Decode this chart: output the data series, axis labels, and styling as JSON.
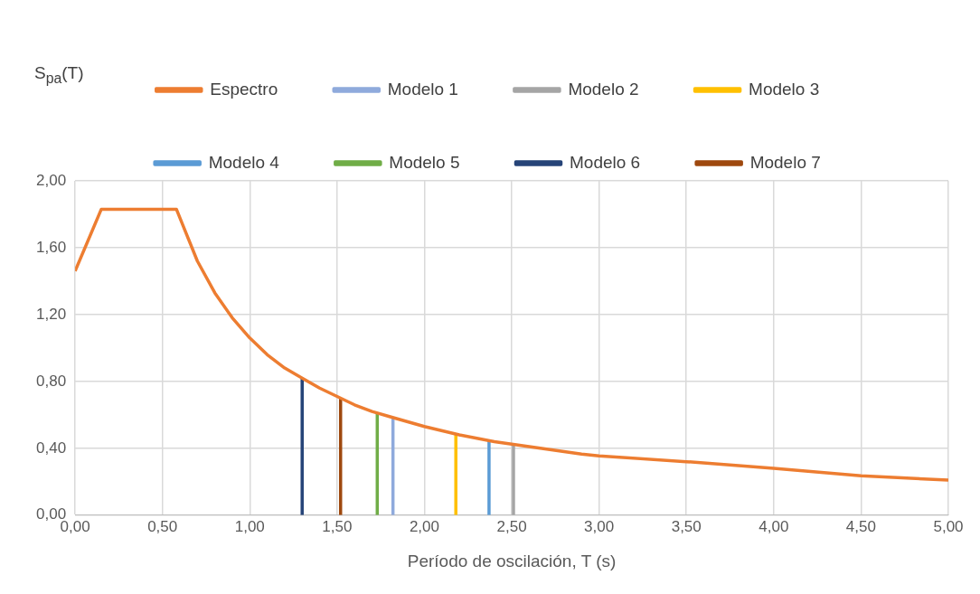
{
  "chart_data": {
    "type": "line",
    "xlabel": "Período de oscilación, T (s)",
    "ylabel": "S$_{pa}$(T)",
    "xlim": [
      0,
      5
    ],
    "ylim": [
      0,
      2
    ],
    "xticks": [
      {
        "value": 0,
        "label": "0,00"
      },
      {
        "value": 0.5,
        "label": "0,50"
      },
      {
        "value": 1,
        "label": "1,00"
      },
      {
        "value": 1.5,
        "label": "1,50"
      },
      {
        "value": 2,
        "label": "2,00"
      },
      {
        "value": 2.5,
        "label": "2,50"
      },
      {
        "value": 3,
        "label": "3,00"
      },
      {
        "value": 3.5,
        "label": "3,50"
      },
      {
        "value": 4,
        "label": "4,00"
      },
      {
        "value": 4.5,
        "label": "4,50"
      },
      {
        "value": 5,
        "label": "5,00"
      }
    ],
    "yticks": [
      {
        "value": 0,
        "label": "0,00"
      },
      {
        "value": 0.4,
        "label": "0,40"
      },
      {
        "value": 0.8,
        "label": "0,80"
      },
      {
        "value": 1.2,
        "label": "1,20"
      },
      {
        "value": 1.6,
        "label": "1,60"
      },
      {
        "value": 2,
        "label": "2,00"
      }
    ],
    "grid": true,
    "legend": "top",
    "marker": "none",
    "series": [
      {
        "name": "Espectro",
        "color": "#ed7d31",
        "x": [
          0,
          0.15,
          0.58,
          0.7,
          0.8,
          0.9,
          1.0,
          1.1,
          1.2,
          1.3,
          1.4,
          1.5,
          1.6,
          1.7,
          1.8,
          1.9,
          2.0,
          2.2,
          2.4,
          2.6,
          2.8,
          2.9,
          3.0,
          3.5,
          4.0,
          4.5,
          5.0
        ],
        "values": [
          1.46,
          1.83,
          1.83,
          1.52,
          1.33,
          1.18,
          1.06,
          0.96,
          0.88,
          0.82,
          0.76,
          0.71,
          0.66,
          0.62,
          0.59,
          0.56,
          0.53,
          0.48,
          0.44,
          0.41,
          0.38,
          0.365,
          0.355,
          0.32,
          0.28,
          0.235,
          0.21
        ]
      },
      {
        "name": "Modelo 1",
        "color": "#8faadc",
        "x": [
          1.82,
          1.82
        ],
        "values": [
          0,
          0.586
        ]
      },
      {
        "name": "Modelo 2",
        "color": "#a5a5a5",
        "x": [
          2.51,
          2.51
        ],
        "values": [
          0,
          0.422
        ]
      },
      {
        "name": "Modelo 3",
        "color": "#ffc000",
        "x": [
          2.18,
          2.18
        ],
        "values": [
          0,
          0.487
        ]
      },
      {
        "name": "Modelo 4",
        "color": "#5b9bd5",
        "x": [
          2.37,
          2.37
        ],
        "values": [
          0,
          0.448
        ]
      },
      {
        "name": "Modelo 5",
        "color": "#70ad47",
        "x": [
          1.73,
          1.73
        ],
        "values": [
          0,
          0.613
        ]
      },
      {
        "name": "Modelo 6",
        "color": "#264478",
        "x": [
          1.3,
          1.3
        ],
        "values": [
          0,
          0.816
        ]
      },
      {
        "name": "Modelo 7",
        "color": "#9e480e",
        "x": [
          1.52,
          1.52
        ],
        "values": [
          0,
          0.697
        ]
      }
    ]
  }
}
